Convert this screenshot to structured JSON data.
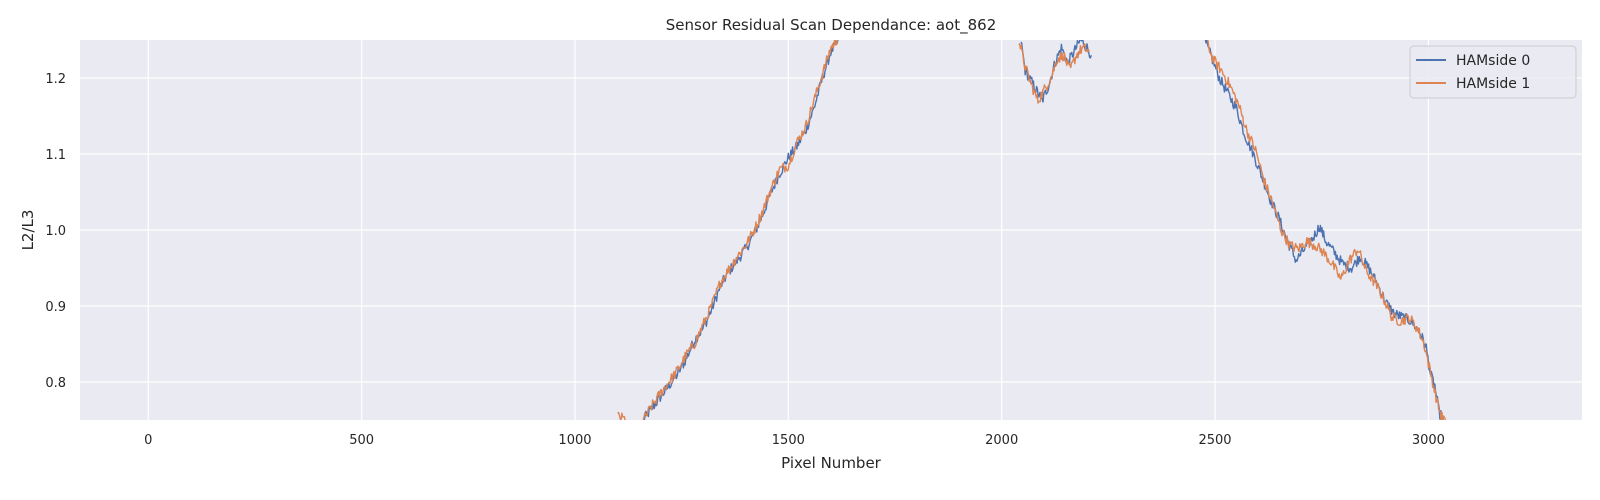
{
  "chart_data": {
    "type": "line",
    "title": "Sensor Residual Scan Dependance: aot_862",
    "xlabel": "Pixel Number",
    "ylabel": "L2/L3",
    "xlim": [
      -160,
      3360
    ],
    "ylim": [
      0.75,
      1.25
    ],
    "xticks": [
      0,
      500,
      1000,
      1500,
      2000,
      2500,
      3000
    ],
    "yticks": [
      0.8,
      0.9,
      1.0,
      1.1,
      1.2
    ],
    "xtick_labels": [
      "0",
      "500",
      "1000",
      "1500",
      "2000",
      "2500",
      "3000"
    ],
    "ytick_labels": [
      "0.8",
      "0.9",
      "1.0",
      "1.1",
      "1.2"
    ],
    "grid": true,
    "legend_position": "top-right",
    "series": [
      {
        "name": "HAMside 0",
        "color": "#4c72b0",
        "segments": [
          [
            [
              1160,
              0.75
            ],
            [
              1180,
              0.765
            ],
            [
              1200,
              0.78
            ],
            [
              1220,
              0.795
            ],
            [
              1240,
              0.81
            ],
            [
              1260,
              0.83
            ],
            [
              1280,
              0.855
            ],
            [
              1300,
              0.87
            ],
            [
              1320,
              0.895
            ],
            [
              1340,
              0.925
            ],
            [
              1360,
              0.945
            ],
            [
              1380,
              0.96
            ],
            [
              1400,
              0.975
            ],
            [
              1420,
              0.995
            ],
            [
              1440,
              1.02
            ],
            [
              1460,
              1.05
            ],
            [
              1480,
              1.075
            ],
            [
              1500,
              1.095
            ],
            [
              1520,
              1.11
            ],
            [
              1540,
              1.13
            ],
            [
              1560,
              1.16
            ],
            [
              1580,
              1.2
            ],
            [
              1600,
              1.235
            ],
            [
              1620,
              1.25
            ]
          ],
          [
            [
              2045,
              1.25
            ],
            [
              2055,
              1.21
            ],
            [
              2065,
              1.2
            ],
            [
              2080,
              1.185
            ],
            [
              2095,
              1.17
            ],
            [
              2110,
              1.19
            ],
            [
              2125,
              1.22
            ],
            [
              2140,
              1.24
            ],
            [
              2155,
              1.22
            ],
            [
              2170,
              1.235
            ],
            [
              2185,
              1.25
            ],
            [
              2200,
              1.24
            ],
            [
              2210,
              1.23
            ]
          ],
          [
            [
              2475,
              1.25
            ],
            [
              2490,
              1.23
            ],
            [
              2510,
              1.2
            ],
            [
              2530,
              1.18
            ],
            [
              2550,
              1.16
            ],
            [
              2570,
              1.125
            ],
            [
              2590,
              1.1
            ],
            [
              2610,
              1.07
            ],
            [
              2630,
              1.04
            ],
            [
              2650,
              1.015
            ],
            [
              2670,
              0.985
            ],
            [
              2690,
              0.96
            ],
            [
              2710,
              0.975
            ],
            [
              2730,
              0.99
            ],
            [
              2745,
              1.005
            ],
            [
              2760,
              0.985
            ],
            [
              2780,
              0.97
            ],
            [
              2800,
              0.955
            ],
            [
              2820,
              0.95
            ],
            [
              2840,
              0.965
            ],
            [
              2860,
              0.95
            ],
            [
              2880,
              0.93
            ],
            [
              2900,
              0.905
            ],
            [
              2920,
              0.89
            ],
            [
              2940,
              0.885
            ],
            [
              2960,
              0.88
            ],
            [
              2980,
              0.865
            ],
            [
              2995,
              0.845
            ],
            [
              3005,
              0.81
            ],
            [
              3015,
              0.795
            ],
            [
              3025,
              0.76
            ],
            [
              3035,
              0.75
            ]
          ]
        ]
      },
      {
        "name": "HAMside 1",
        "color": "#dd8452",
        "segments": [
          [
            [
              1100,
              0.755
            ],
            [
              1120,
              0.75
            ]
          ],
          [
            [
              1160,
              0.75
            ],
            [
              1180,
              0.768
            ],
            [
              1200,
              0.785
            ],
            [
              1220,
              0.8
            ],
            [
              1240,
              0.815
            ],
            [
              1260,
              0.835
            ],
            [
              1280,
              0.85
            ],
            [
              1300,
              0.875
            ],
            [
              1320,
              0.9
            ],
            [
              1340,
              0.93
            ],
            [
              1360,
              0.948
            ],
            [
              1380,
              0.965
            ],
            [
              1400,
              0.98
            ],
            [
              1420,
              1.0
            ],
            [
              1440,
              1.025
            ],
            [
              1460,
              1.055
            ],
            [
              1480,
              1.08
            ],
            [
              1500,
              1.085
            ],
            [
              1520,
              1.115
            ],
            [
              1540,
              1.135
            ],
            [
              1560,
              1.17
            ],
            [
              1580,
              1.205
            ],
            [
              1600,
              1.24
            ],
            [
              1615,
              1.25
            ]
          ],
          [
            [
              2040,
              1.25
            ],
            [
              2055,
              1.215
            ],
            [
              2070,
              1.19
            ],
            [
              2085,
              1.17
            ],
            [
              2100,
              1.185
            ],
            [
              2115,
              1.2
            ],
            [
              2130,
              1.225
            ],
            [
              2145,
              1.23
            ],
            [
              2160,
              1.21
            ],
            [
              2175,
              1.23
            ],
            [
              2190,
              1.24
            ],
            [
              2205,
              1.235
            ]
          ],
          [
            [
              2480,
              1.25
            ],
            [
              2495,
              1.225
            ],
            [
              2515,
              1.21
            ],
            [
              2535,
              1.19
            ],
            [
              2555,
              1.165
            ],
            [
              2575,
              1.13
            ],
            [
              2595,
              1.105
            ],
            [
              2615,
              1.065
            ],
            [
              2635,
              1.035
            ],
            [
              2655,
              1.0
            ],
            [
              2675,
              0.98
            ],
            [
              2695,
              0.975
            ],
            [
              2715,
              0.985
            ],
            [
              2735,
              0.98
            ],
            [
              2755,
              0.97
            ],
            [
              2775,
              0.955
            ],
            [
              2795,
              0.935
            ],
            [
              2815,
              0.96
            ],
            [
              2835,
              0.975
            ],
            [
              2855,
              0.945
            ],
            [
              2875,
              0.93
            ],
            [
              2895,
              0.91
            ],
            [
              2915,
              0.885
            ],
            [
              2935,
              0.88
            ],
            [
              2955,
              0.885
            ],
            [
              2975,
              0.87
            ],
            [
              2990,
              0.85
            ],
            [
              3000,
              0.825
            ],
            [
              3010,
              0.8
            ],
            [
              3020,
              0.775
            ],
            [
              3030,
              0.755
            ],
            [
              3040,
              0.75
            ]
          ]
        ]
      }
    ]
  }
}
